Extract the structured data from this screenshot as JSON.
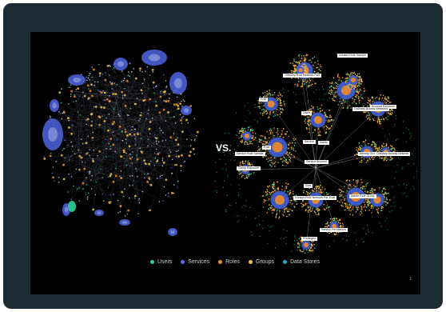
{
  "vs_text": "VS.",
  "legend": [
    {
      "label": "Users",
      "color": "#2fd39a"
    },
    {
      "label": "Services",
      "color": "#5a6fe0"
    },
    {
      "label": "Roles",
      "color": "#f08a24"
    },
    {
      "label": "Groups",
      "color": "#f2c341"
    },
    {
      "label": "Data Stores",
      "color": "#2aa9c9"
    }
  ],
  "page_number": "1",
  "node_labels": [
    "Unused Role Sample",
    "Ordinary Role Network Part",
    "Role",
    "Users",
    "Account Exposure",
    "Ordinary Access Networks",
    "Admin",
    "Service",
    "Role",
    "Identity Group",
    "Ordinary Access Network",
    "Group Exposure",
    "Service Account",
    "Role",
    "Unused Role Network Part",
    "Role",
    "Service Permission",
    "Privileged",
    "Admin Role Group",
    "Service Role Sample"
  ]
}
